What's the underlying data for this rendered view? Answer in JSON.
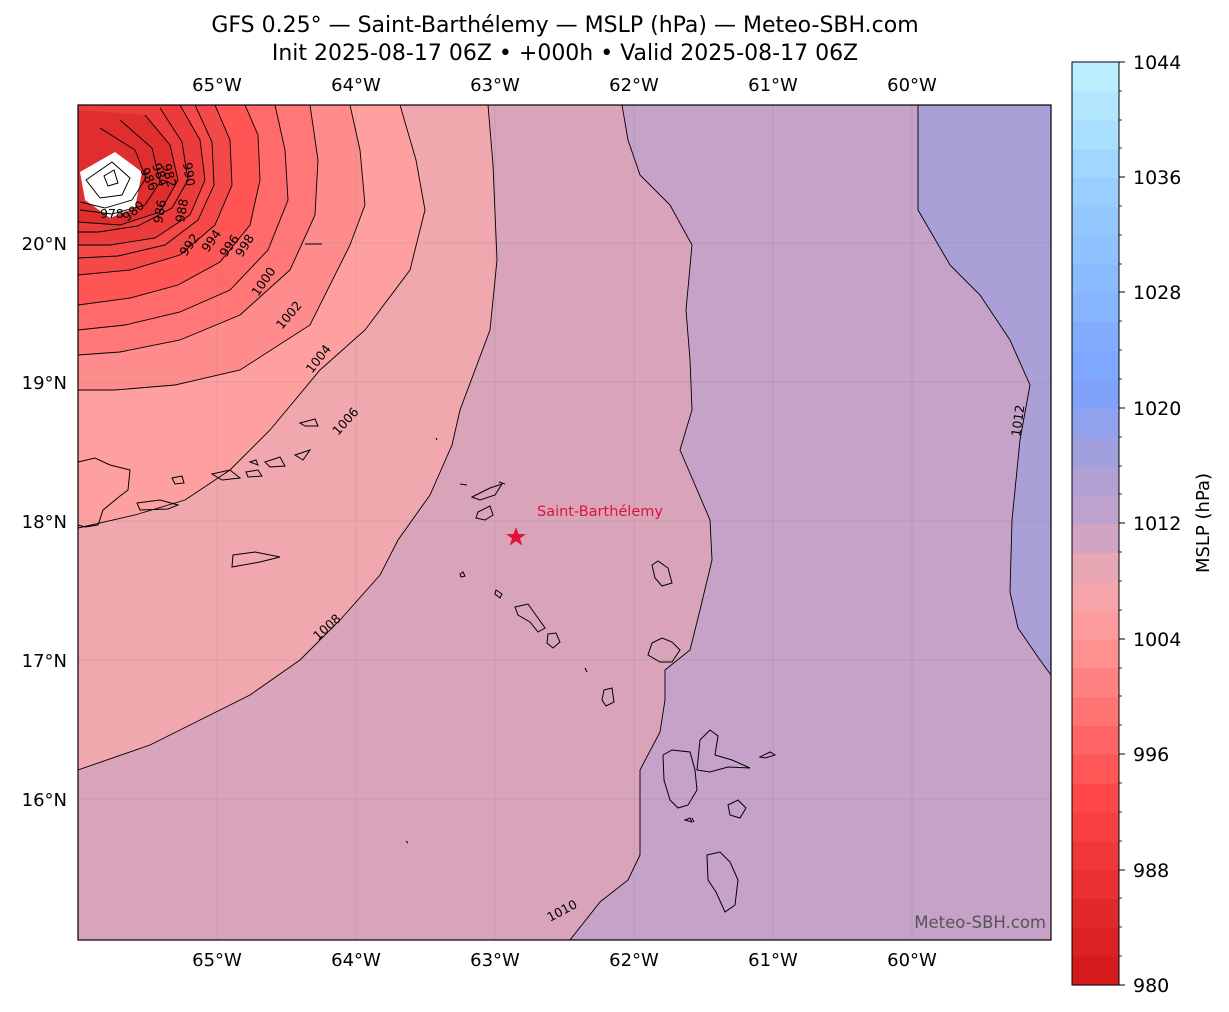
{
  "title": {
    "line1": "GFS 0.25° — Saint-Barthélemy — MSLP (hPa) — Meteo-SBH.com",
    "line2": "Init 2025-08-17 06Z • +000h • Valid 2025-08-17 06Z"
  },
  "map": {
    "lon_range": [
      -66.0,
      -59.0
    ],
    "lat_range": [
      15.0,
      21.0
    ],
    "lon_ticks": [
      "65°W",
      "64°W",
      "63°W",
      "62°W",
      "61°W",
      "60°W"
    ],
    "lat_ticks": [
      "20°N",
      "19°N",
      "18°N",
      "17°N",
      "16°N"
    ],
    "contour_labels": [
      "986",
      "984",
      "982",
      "990",
      "978",
      "980",
      "986",
      "988",
      "992",
      "994",
      "996",
      "998",
      "1000",
      "1002",
      "1004",
      "1006",
      "1008",
      "1010",
      "1012"
    ],
    "marker": {
      "label": "Saint-Barthélemy",
      "lon": -62.85,
      "lat": 17.9,
      "color": "#dc143c"
    },
    "watermark": "Meteo-SBH.com"
  },
  "colorbar": {
    "label": "MSLP (hPa)",
    "range": [
      980,
      1044
    ],
    "ticks": [
      "1044",
      "1036",
      "1028",
      "1020",
      "1012",
      "1004",
      "996",
      "988",
      "980"
    ],
    "colors": {
      "low": "#d01818",
      "mid_low": "#ff9a9a",
      "neutral": "#c6a2c9",
      "mid_high": "#7ba2ff",
      "high": "#bff0ff"
    }
  }
}
